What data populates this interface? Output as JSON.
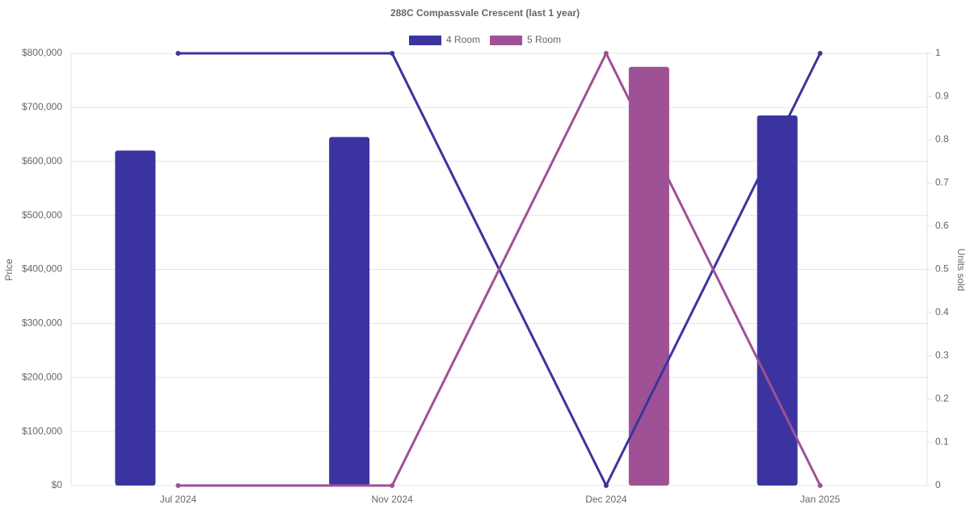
{
  "chart_data": {
    "type": "bar-line",
    "title": "288C Compassvale Crescent (last 1 year)",
    "categories": [
      "Jul 2024",
      "Nov 2024",
      "Dec 2024",
      "Jan 2025"
    ],
    "series": [
      {
        "name": "4 Room",
        "color": "#3b34a0",
        "values": [
          620000,
          645000,
          null,
          685000
        ],
        "units": [
          1,
          1,
          0,
          1
        ]
      },
      {
        "name": "5 Room",
        "color": "#9e5195",
        "values": [
          null,
          null,
          775000,
          null
        ],
        "units": [
          0,
          0,
          1,
          0
        ]
      }
    ],
    "y_label": "Price",
    "y2_label": "Units sold",
    "ylim": [
      0,
      800000
    ],
    "yticks": [
      {
        "value": 0,
        "label": "$0"
      },
      {
        "value": 100000,
        "label": "$100,000"
      },
      {
        "value": 200000,
        "label": "$200,000"
      },
      {
        "value": 300000,
        "label": "$300,000"
      },
      {
        "value": 400000,
        "label": "$400,000"
      },
      {
        "value": 500000,
        "label": "$500,000"
      },
      {
        "value": 600000,
        "label": "$600,000"
      },
      {
        "value": 700000,
        "label": "$700,000"
      },
      {
        "value": 800000,
        "label": "$800,000"
      }
    ],
    "y2lim": [
      0,
      1
    ],
    "y2ticks": [
      0,
      0.1,
      0.2,
      0.3,
      0.4,
      0.5,
      0.6,
      0.7,
      0.8,
      0.9,
      1
    ],
    "grid": true,
    "legend": "top"
  }
}
